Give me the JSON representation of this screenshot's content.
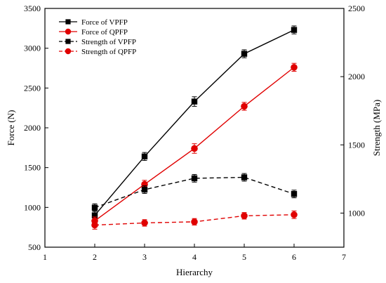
{
  "chart_data": {
    "type": "line",
    "title": "",
    "xlabel": "Hierarchy",
    "ylabel": "Force (N)",
    "y2label": "Strength (MPa)",
    "xlim": [
      1,
      7
    ],
    "ylim": [
      500,
      3500
    ],
    "y2lim": [
      750,
      2500
    ],
    "x_ticks": [
      1,
      2,
      3,
      4,
      5,
      6,
      7
    ],
    "y_ticks": [
      500,
      1000,
      1500,
      2000,
      2500,
      3000,
      3500
    ],
    "y2_ticks": [
      1000,
      1500,
      2000,
      2500
    ],
    "x": [
      2,
      3,
      4,
      5,
      6
    ],
    "legend_position": "top-left",
    "grid": false,
    "series": [
      {
        "name": "Force of VPFP",
        "axis": "left",
        "color": "#000000",
        "linestyle": "solid",
        "marker": "square",
        "values": [
          900,
          1640,
          2330,
          2930,
          3230
        ],
        "errors": [
          60,
          50,
          60,
          50,
          50
        ]
      },
      {
        "name": "Force of QPFP",
        "axis": "left",
        "color": "#e00000",
        "linestyle": "solid",
        "marker": "circle",
        "values": [
          830,
          1290,
          1740,
          2270,
          2760
        ],
        "errors": [
          50,
          50,
          60,
          50,
          50
        ]
      },
      {
        "name": "Strength of VPFP",
        "axis": "right",
        "color": "#000000",
        "linestyle": "dashed",
        "marker": "square",
        "values": [
          1040,
          1172,
          1255,
          1262,
          1140
        ],
        "errors": [
          28,
          28,
          28,
          28,
          28
        ]
      },
      {
        "name": "Strength of QPFP",
        "axis": "right",
        "color": "#e00000",
        "linestyle": "dashed",
        "marker": "circle",
        "values": [
          912,
          928,
          936,
          980,
          988
        ],
        "errors": [
          30,
          24,
          24,
          24,
          28
        ]
      }
    ]
  }
}
